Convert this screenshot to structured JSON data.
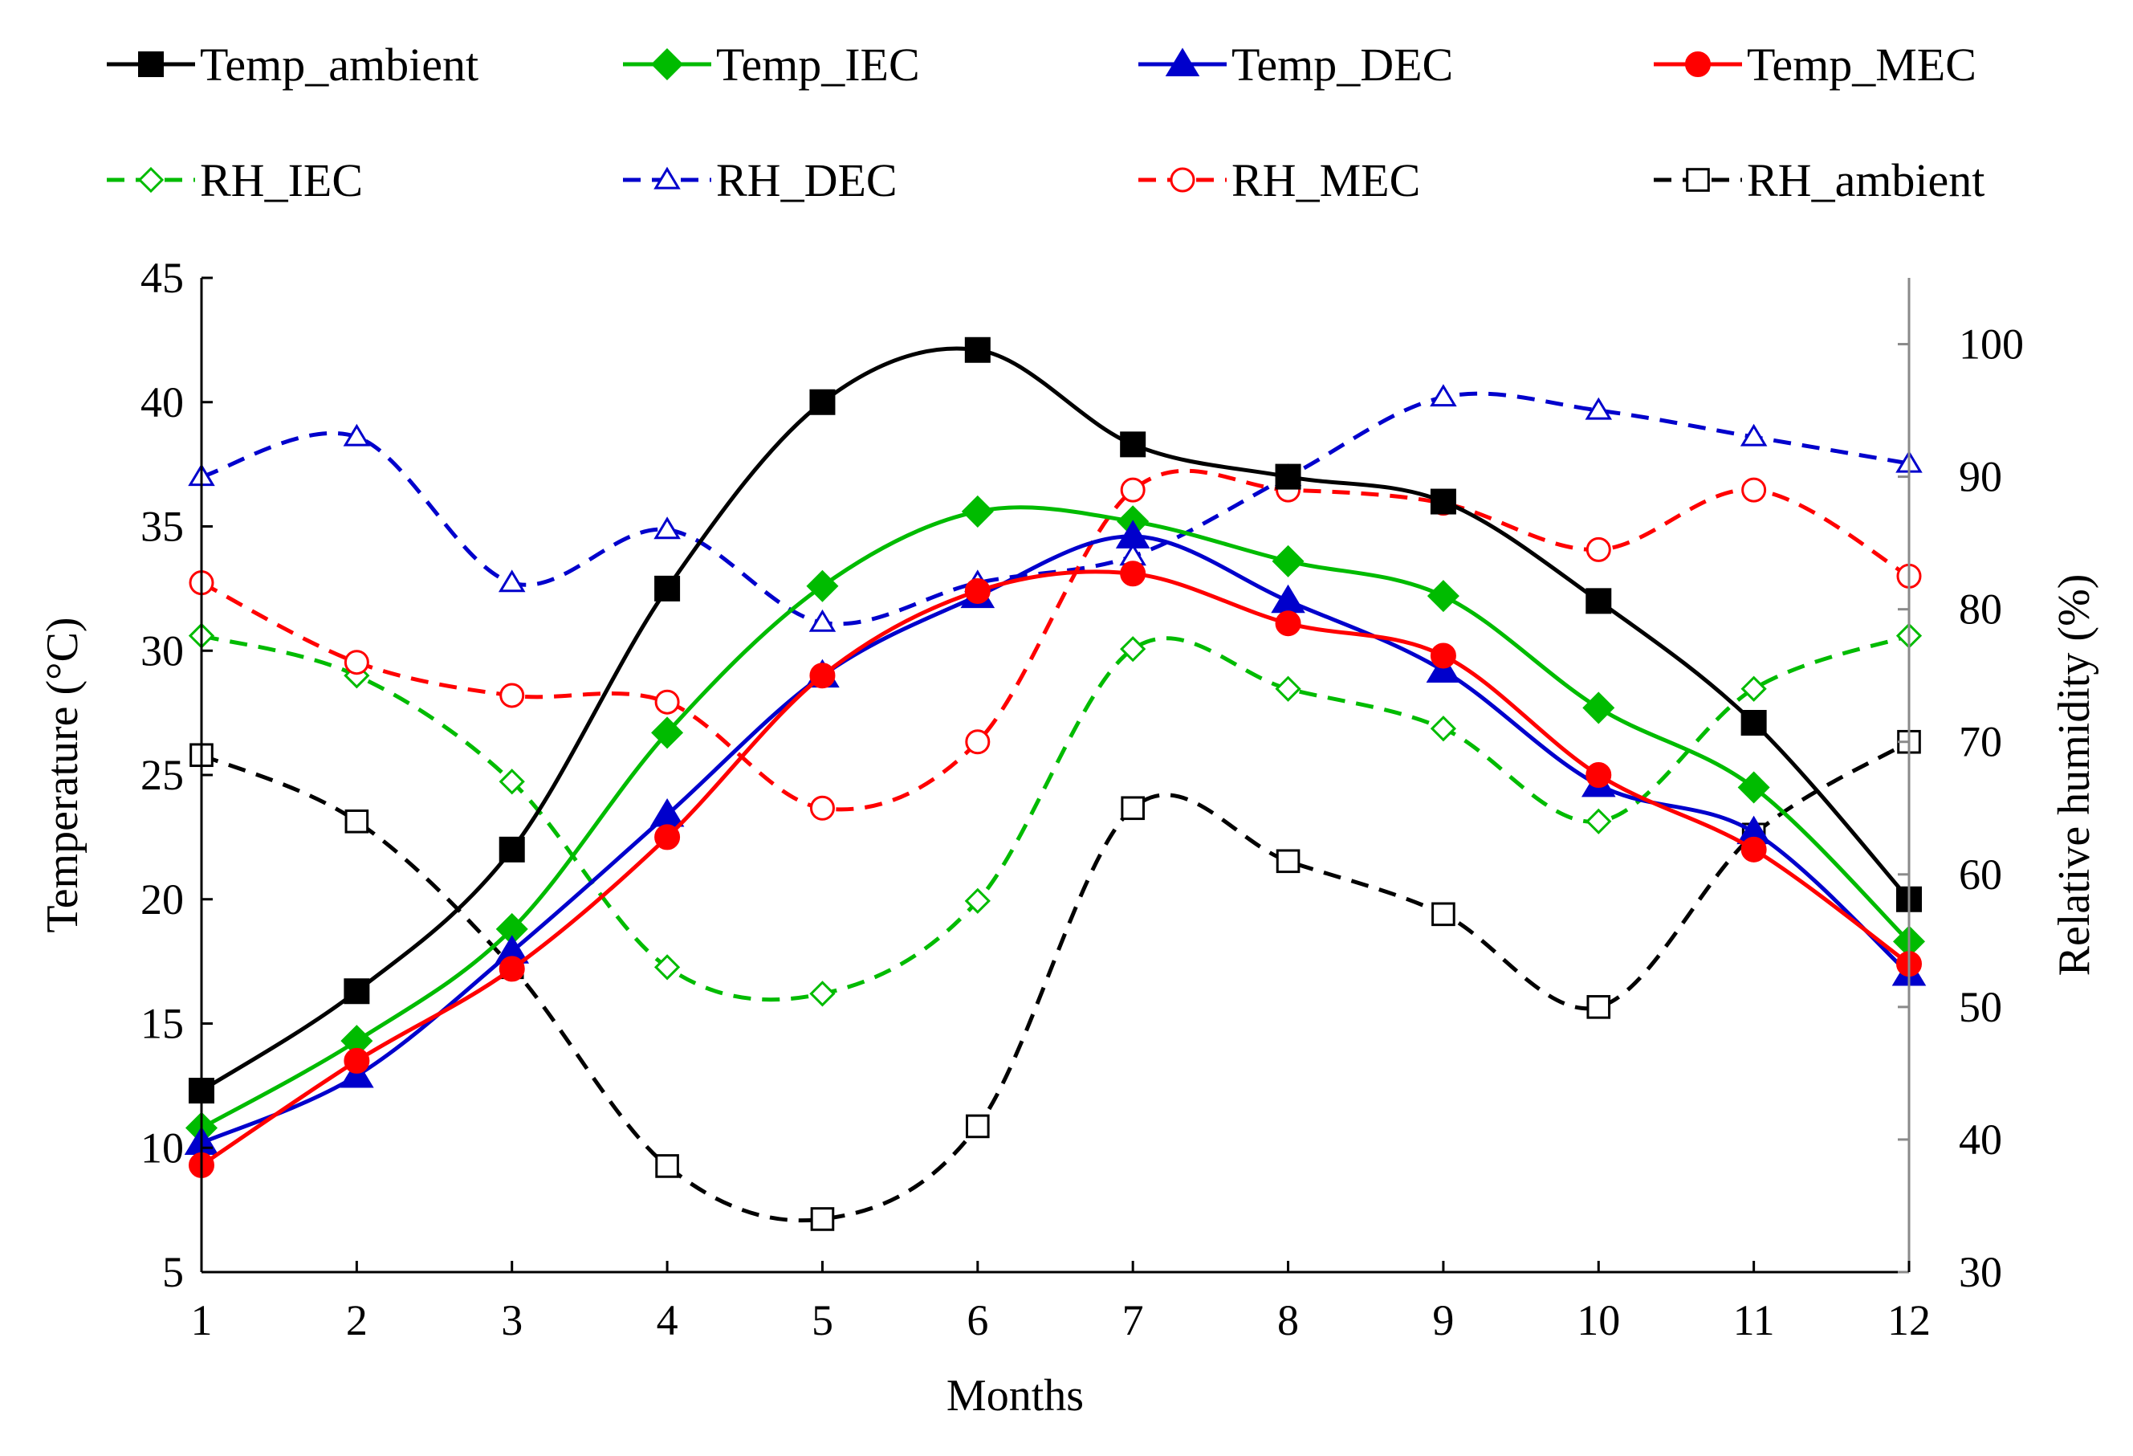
{
  "chart_data": {
    "type": "line",
    "title": "",
    "xlabel": "Months",
    "ylabel_left": "Temperature (°C)",
    "ylabel_right": "Relative humidity (%)",
    "x": [
      1,
      2,
      3,
      4,
      5,
      6,
      7,
      8,
      9,
      10,
      11,
      12
    ],
    "x_ticks": [
      "1",
      "2",
      "3",
      "4",
      "5",
      "6",
      "7",
      "8",
      "9",
      "10",
      "11",
      "12"
    ],
    "ylim_left": [
      5,
      45
    ],
    "yticks_left": [
      "5",
      "10",
      "15",
      "20",
      "25",
      "30",
      "35",
      "40",
      "45"
    ],
    "ylim_right": [
      30,
      105
    ],
    "yticks_right": [
      "30",
      "40",
      "50",
      "60",
      "70",
      "80",
      "90",
      "100"
    ],
    "grid": false,
    "legend_position": "top",
    "series": [
      {
        "name": "Temp_ambient",
        "axis": "left",
        "color": "#000000",
        "dashed": false,
        "marker": "square",
        "filled": true,
        "values": [
          12.3,
          16.3,
          22.0,
          32.5,
          40.0,
          42.1,
          38.3,
          37.0,
          36.0,
          32.0,
          27.1,
          20.0
        ]
      },
      {
        "name": "Temp_IEC",
        "axis": "left",
        "color": "#00bb00",
        "dashed": false,
        "marker": "diamond",
        "filled": true,
        "values": [
          10.8,
          14.3,
          18.8,
          26.7,
          32.6,
          35.6,
          35.2,
          33.6,
          32.2,
          27.7,
          24.5,
          18.3
        ]
      },
      {
        "name": "Temp_DEC",
        "axis": "left",
        "color": "#0000cc",
        "dashed": false,
        "marker": "triangle",
        "filled": true,
        "values": [
          10.2,
          12.9,
          17.9,
          23.4,
          29.0,
          32.2,
          34.6,
          32.0,
          29.2,
          24.6,
          22.7,
          17.0
        ]
      },
      {
        "name": "Temp_MEC",
        "axis": "left",
        "color": "#ff0000",
        "dashed": false,
        "marker": "circle",
        "filled": true,
        "values": [
          9.3,
          13.5,
          17.2,
          22.5,
          29.0,
          32.4,
          33.1,
          31.1,
          29.8,
          25.0,
          22.0,
          17.4
        ]
      },
      {
        "name": "RH_IEC",
        "axis": "right",
        "color": "#00bb00",
        "dashed": true,
        "marker": "diamond",
        "filled": false,
        "values": [
          78,
          75,
          67,
          53,
          51,
          58,
          77,
          74,
          71,
          64,
          74,
          78
        ]
      },
      {
        "name": "RH_DEC",
        "axis": "right",
        "color": "#0000cc",
        "dashed": true,
        "marker": "triangle",
        "filled": false,
        "values": [
          90,
          93,
          82,
          86,
          79,
          82,
          84,
          90,
          96,
          95,
          93,
          91
        ]
      },
      {
        "name": "RH_MEC",
        "axis": "right",
        "color": "#ff0000",
        "dashed": true,
        "marker": "circle",
        "filled": false,
        "values": [
          82,
          76,
          73.5,
          73,
          65,
          70,
          89,
          89,
          88,
          84.5,
          89,
          82.5
        ]
      },
      {
        "name": "RH_ambient",
        "axis": "right",
        "color": "#000000",
        "dashed": true,
        "marker": "square",
        "filled": false,
        "values": [
          69,
          64,
          53,
          38,
          34,
          41,
          65,
          61,
          57,
          50,
          63,
          70
        ]
      }
    ]
  }
}
